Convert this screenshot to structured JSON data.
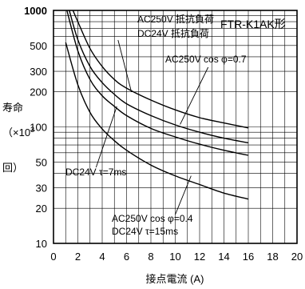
{
  "chart_data": {
    "type": "line",
    "title": "FTR-K1AK形",
    "xlabel": "接点電流 (A)",
    "ylabel": {
      "line1": "寿命",
      "line2": "（×10",
      "exp": "3",
      "line3": "回）"
    },
    "x_ticks": [
      "0",
      "2",
      "4",
      "6",
      "8",
      "10",
      "12",
      "14",
      "16",
      "18",
      "20"
    ],
    "y_ticks": [
      {
        "value": 1000,
        "label": "1000"
      },
      {
        "value": 500,
        "label": "500"
      },
      {
        "value": 300,
        "label": "300"
      },
      {
        "value": 200,
        "label": "200"
      },
      {
        "value": 100,
        "label": "100"
      },
      {
        "value": 50,
        "label": "50"
      },
      {
        "value": 30,
        "label": "30"
      },
      {
        "value": 20,
        "label": "20"
      },
      {
        "value": 10,
        "label": "10"
      }
    ],
    "xlim": [
      0,
      20
    ],
    "ylim": [
      10,
      1000
    ],
    "y_scale": "log",
    "grid": true,
    "series": [
      {
        "name": "AC250V 抵抗負荷 / DC24V 抵抗負荷",
        "x": [
          1.6,
          2,
          3,
          4,
          5,
          6,
          8,
          10,
          12,
          14,
          16
        ],
        "y": [
          1000,
          800,
          470,
          330,
          255,
          215,
          170,
          140,
          120,
          108,
          98
        ]
      },
      {
        "name": "AC250V cos φ=0.7",
        "x": [
          1.3,
          2,
          3,
          4,
          5,
          6,
          8,
          10,
          12,
          14,
          16
        ],
        "y": [
          1000,
          560,
          330,
          240,
          190,
          158,
          125,
          104,
          90,
          80,
          73
        ]
      },
      {
        "name": "DC24V τ=7ms",
        "x": [
          1.1,
          2,
          3,
          4,
          5,
          6,
          8,
          10,
          12,
          14,
          16
        ],
        "y": [
          1000,
          450,
          255,
          185,
          150,
          125,
          97,
          82,
          71,
          63,
          57
        ]
      },
      {
        "name": "AC250V cos φ=0.4 / DC24V τ=15ms",
        "x": [
          1,
          2,
          3,
          4,
          5,
          6,
          8,
          10,
          12,
          14,
          16
        ],
        "y": [
          530,
          230,
          133,
          96,
          76,
          63,
          47,
          38,
          32,
          27,
          24
        ]
      }
    ],
    "annotations": [
      {
        "id": "res1",
        "text": "AC250V 抵抗負荷"
      },
      {
        "id": "res2",
        "text": "DC24V 抵抗負荷"
      },
      {
        "id": "cos07",
        "text": "AC250V cos φ=0.7"
      },
      {
        "id": "tau7",
        "text": "DC24V τ=7ms"
      },
      {
        "id": "cos04",
        "text": "AC250V cos φ=0.4"
      },
      {
        "id": "tau15",
        "text": "DC24V τ=15ms"
      }
    ]
  }
}
